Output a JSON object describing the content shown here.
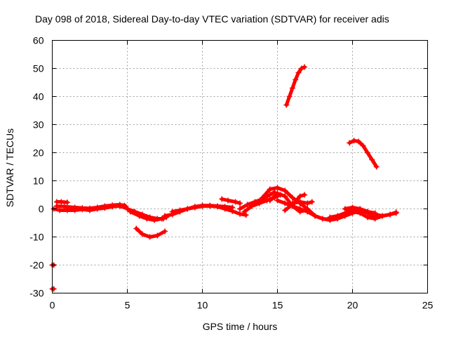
{
  "chart_data": {
    "type": "scatter",
    "title": "Day 098 of 2018, Sidereal Day-to-day VTEC variation (SDTVAR) for receiver adis",
    "xlabel": "GPS time / hours",
    "ylabel": "SDTVAR / TECUs",
    "xlim": [
      0,
      25
    ],
    "ylim": [
      -30,
      60
    ],
    "xticks": [
      0,
      5,
      10,
      15,
      20,
      25
    ],
    "yticks": [
      -30,
      -20,
      -10,
      0,
      10,
      20,
      30,
      40,
      50,
      60
    ],
    "grid": true,
    "color": "#ff0000",
    "marker": "plus",
    "series": [
      {
        "name": "trace-1",
        "x": [
          0.1,
          0.5,
          1.0,
          1.5,
          2.0,
          2.5,
          3.0,
          3.5,
          4.0,
          4.5,
          4.9
        ],
        "y": [
          0.0,
          -0.5,
          -0.5,
          -0.5,
          -0.2,
          -0.5,
          0.0,
          0.3,
          0.8,
          1.0,
          0.8
        ]
      },
      {
        "name": "trace-2",
        "x": [
          0.3,
          0.8,
          1.5,
          2.0,
          2.5,
          3.0,
          3.5,
          4.0,
          4.5,
          4.8
        ],
        "y": [
          1.0,
          0.8,
          0.5,
          0.3,
          0.2,
          0.5,
          1.0,
          1.3,
          1.5,
          1.2
        ]
      },
      {
        "name": "trace-3",
        "x": [
          0.3,
          0.6,
          1.0
        ],
        "y": [
          2.5,
          2.5,
          2.3
        ]
      },
      {
        "name": "trace-4",
        "x": [
          4.6,
          5.0,
          5.5,
          6.0,
          6.5,
          7.0,
          7.4
        ],
        "y": [
          1.0,
          0.0,
          -1.0,
          -2.0,
          -3.0,
          -3.5,
          -3.5
        ]
      },
      {
        "name": "trace-5",
        "x": [
          5.2,
          5.8,
          6.3,
          6.8,
          7.3,
          7.6
        ],
        "y": [
          -1.0,
          -2.5,
          -3.5,
          -4.0,
          -3.5,
          -3.0
        ]
      },
      {
        "name": "trace-6",
        "x": [
          5.6,
          6.0,
          6.5,
          7.0,
          7.5
        ],
        "y": [
          -7.0,
          -9.0,
          -10.0,
          -9.5,
          -8.0
        ]
      },
      {
        "name": "trace-7",
        "x": [
          7.5,
          8.0,
          8.5,
          9.0,
          9.5,
          10.0,
          10.5,
          11.0,
          11.5,
          12.0,
          12.5,
          12.9
        ],
        "y": [
          -2.5,
          -2.0,
          -1.0,
          0.0,
          0.5,
          1.0,
          1.0,
          0.8,
          0.0,
          -0.8,
          -1.8,
          -2.2
        ]
      },
      {
        "name": "trace-8",
        "x": [
          8.0,
          8.5,
          9.0,
          9.5,
          10.0,
          10.5,
          11.0,
          11.5,
          12.0
        ],
        "y": [
          -1.0,
          -0.5,
          0.0,
          0.8,
          1.2,
          1.2,
          1.0,
          0.8,
          0.5
        ]
      },
      {
        "name": "trace-9",
        "x": [
          11.3,
          11.7,
          12.2,
          12.5
        ],
        "y": [
          3.5,
          3.0,
          2.5,
          2.0
        ]
      },
      {
        "name": "trace-10",
        "x": [
          12.5,
          13.0,
          13.5,
          14.0,
          14.5,
          14.8
        ],
        "y": [
          0.0,
          1.5,
          2.5,
          3.5,
          5.0,
          6.0
        ]
      },
      {
        "name": "trace-11",
        "x": [
          12.8,
          13.3,
          13.8,
          14.3,
          14.8,
          15.2
        ],
        "y": [
          -1.0,
          1.0,
          2.0,
          3.0,
          4.0,
          5.0
        ]
      },
      {
        "name": "trace-12",
        "x": [
          14.0,
          14.5,
          15.0,
          15.5,
          16.0,
          16.5,
          17.0,
          17.5,
          18.0,
          18.5,
          19.0,
          19.5,
          20.0,
          20.5,
          21.0,
          21.5,
          22.0,
          22.5,
          22.9
        ],
        "y": [
          4.0,
          7.0,
          7.5,
          6.5,
          4.0,
          2.0,
          0.0,
          -2.5,
          -3.5,
          -3.8,
          -3.2,
          -2.0,
          -1.0,
          -1.5,
          -3.0,
          -3.5,
          -2.5,
          -2.0,
          -1.2
        ]
      },
      {
        "name": "trace-13",
        "x": [
          14.5,
          15.0,
          15.5,
          16.0,
          16.5,
          16.9
        ],
        "y": [
          3.0,
          5.5,
          4.5,
          1.0,
          -1.0,
          -0.5
        ]
      },
      {
        "name": "trace-14",
        "x": [
          15.0,
          15.5,
          16.0,
          16.5,
          17.0,
          17.5,
          18.0,
          18.5,
          19.0,
          19.5,
          20.0,
          20.5,
          21.0,
          21.5
        ],
        "y": [
          3.0,
          2.0,
          1.0,
          0.0,
          -1.0,
          -2.5,
          -3.5,
          -4.0,
          -3.5,
          -2.5,
          -1.5,
          -0.5,
          -1.5,
          -3.0
        ]
      },
      {
        "name": "trace-15",
        "x": [
          15.5,
          16.0,
          16.5,
          16.8
        ],
        "y": [
          -0.5,
          1.5,
          4.5,
          5.0
        ]
      },
      {
        "name": "trace-16",
        "x": [
          16.0,
          16.5,
          17.0,
          17.3
        ],
        "y": [
          2.0,
          2.5,
          2.0,
          2.5
        ]
      },
      {
        "name": "trace-17",
        "x": [
          18.5,
          19.0,
          19.5,
          20.0,
          20.5,
          21.0,
          21.5,
          22.0,
          22.5,
          22.9
        ],
        "y": [
          -3.0,
          -2.5,
          -1.5,
          0.0,
          0.0,
          -1.0,
          -2.0,
          -2.5,
          -2.0,
          -1.5
        ]
      },
      {
        "name": "trace-18",
        "x": [
          19.5,
          20.0,
          20.5,
          21.0,
          21.5
        ],
        "y": [
          0.0,
          0.5,
          0.0,
          -1.0,
          -1.5
        ]
      },
      {
        "name": "trace-19",
        "x": [
          15.6,
          15.8,
          16.0,
          16.2,
          16.4,
          16.6,
          16.8
        ],
        "y": [
          37.0,
          40.0,
          43.0,
          46.0,
          48.5,
          50.0,
          50.5
        ]
      },
      {
        "name": "trace-20",
        "x": [
          19.8,
          20.1,
          20.4,
          20.7,
          21.0,
          21.3,
          21.6
        ],
        "y": [
          23.5,
          24.3,
          24.0,
          22.5,
          20.0,
          17.5,
          15.0
        ]
      },
      {
        "name": "trace-21",
        "x": [
          0.0,
          0.1
        ],
        "y": [
          -20.0,
          -20.0
        ]
      },
      {
        "name": "trace-22",
        "x": [
          0.0,
          0.1
        ],
        "y": [
          -28.5,
          -28.5
        ]
      }
    ]
  }
}
